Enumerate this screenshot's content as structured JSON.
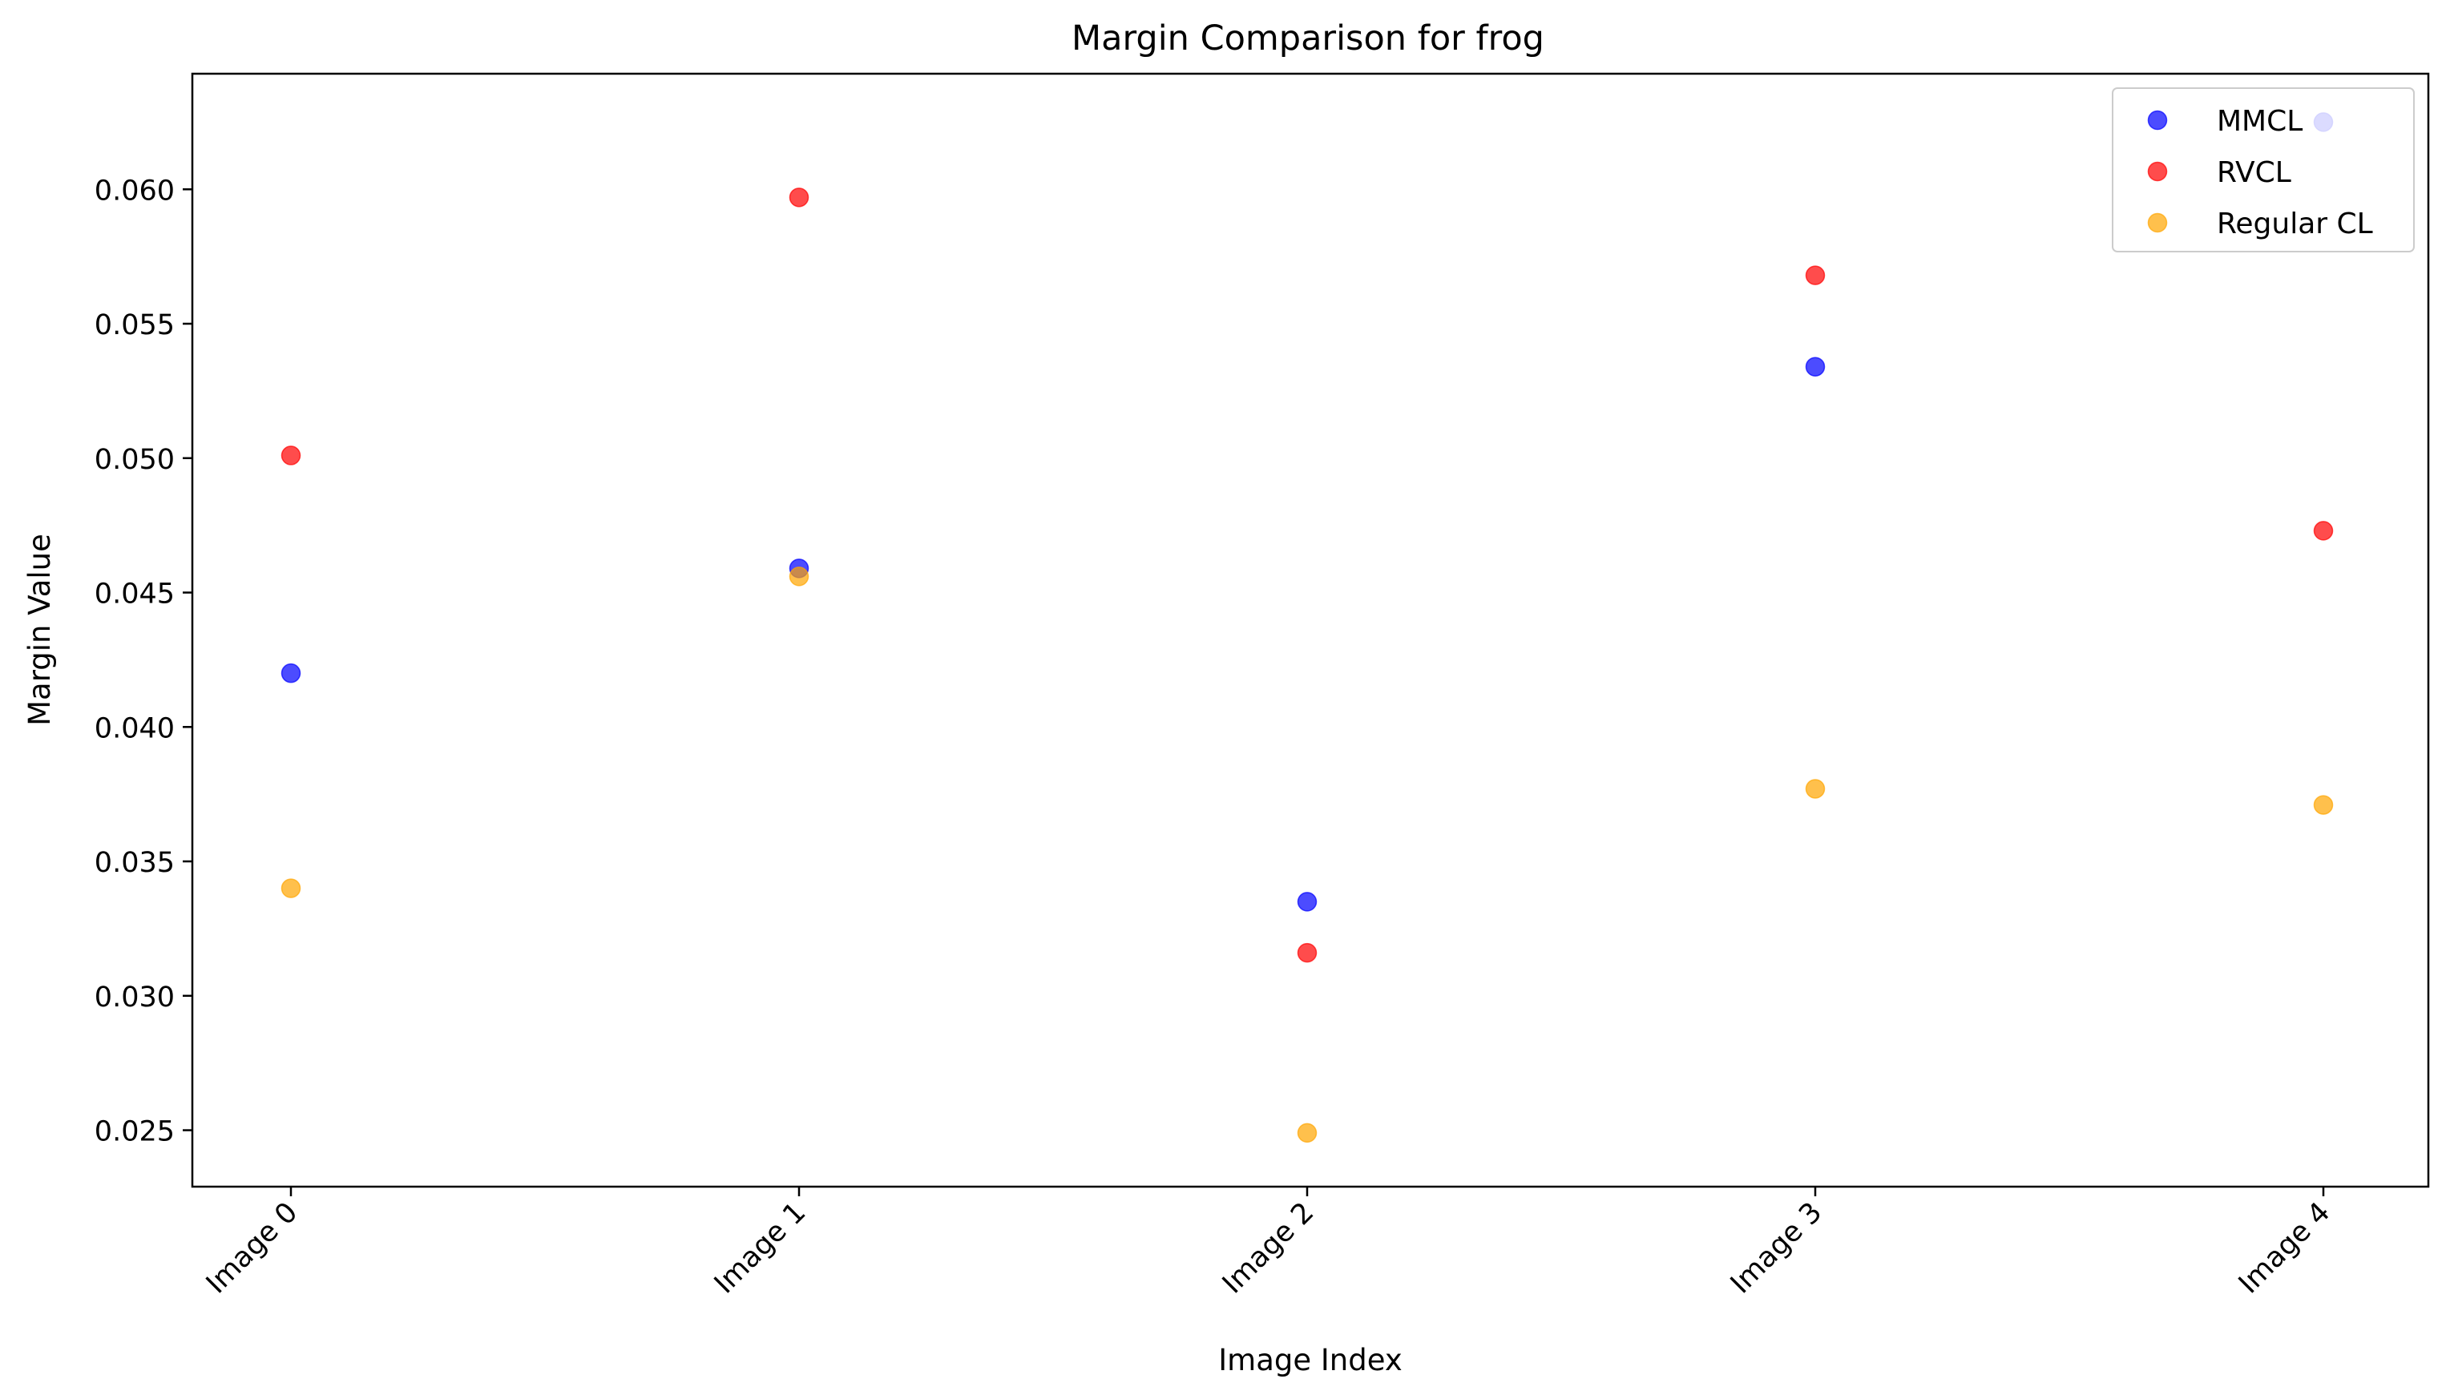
{
  "chart_data": {
    "type": "scatter",
    "title": "Margin Comparison for frog",
    "xlabel": "Image Index",
    "ylabel": "Margin Value",
    "categories": [
      "Image 0",
      "Image 1",
      "Image 2",
      "Image 3",
      "Image 4"
    ],
    "yticks": [
      "0.025",
      "0.030",
      "0.035",
      "0.040",
      "0.045",
      "0.050",
      "0.055",
      "0.060"
    ],
    "ylim": [
      0.0229,
      0.0643
    ],
    "grid": false,
    "legend_position": "top-right",
    "series": [
      {
        "name": "MMCL",
        "color": "#0000ff",
        "values": [
          0.042,
          0.0459,
          0.0335,
          0.0534,
          0.0625
        ]
      },
      {
        "name": "RVCL",
        "color": "#ff0000",
        "values": [
          0.0501,
          0.0597,
          0.0316,
          0.0568,
          0.0473
        ]
      },
      {
        "name": "Regular CL",
        "color": "#ffa500",
        "values": [
          0.034,
          0.0456,
          0.0249,
          0.0377,
          0.0371
        ]
      }
    ]
  }
}
